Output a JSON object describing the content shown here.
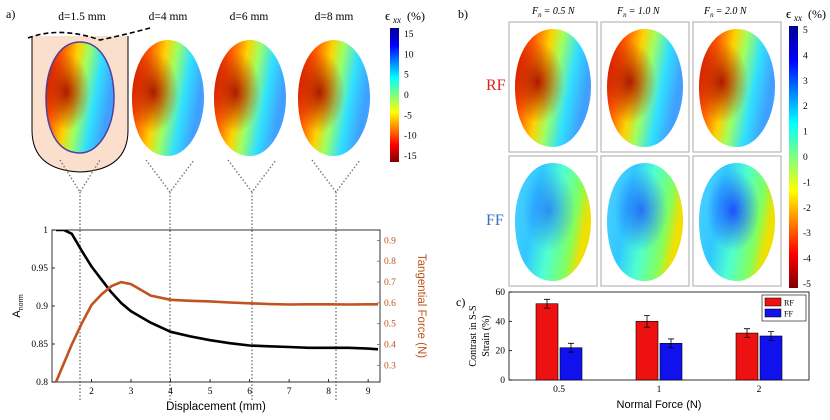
{
  "panel_a": {
    "label": "a)",
    "depth_labels": [
      "d=1.5 mm",
      "d=4 mm",
      "d=6 mm",
      "d=8 mm"
    ],
    "colorbar": {
      "title": "ϵ",
      "subscript": "xx",
      "unit": "(%)",
      "ticks": [
        "15",
        "10",
        "5",
        "0",
        "-5",
        "-10",
        "-15"
      ]
    }
  },
  "panel_b": {
    "label": "b)",
    "force_labels": [
      "F",
      "F",
      "F"
    ],
    "force_subscripts": [
      "n",
      "n",
      "n"
    ],
    "force_values": [
      "= 0.5 N",
      "= 1.0 N",
      "= 2.0 N"
    ],
    "row_labels": [
      "RF",
      "FF"
    ],
    "row_colors": [
      "#e02020",
      "#3a6fbf"
    ],
    "colorbar": {
      "title": "ϵ",
      "subscript": "xx",
      "unit": "(%)",
      "ticks": [
        "5",
        "4",
        "3",
        "2",
        "1",
        "0",
        "-1",
        "-2",
        "-3",
        "-4",
        "-5"
      ]
    }
  },
  "panel_c_label": "c)",
  "chart_data": [
    {
      "type": "line",
      "x": [
        1.1,
        1.3,
        1.5,
        1.75,
        2.0,
        2.25,
        2.5,
        2.75,
        3.0,
        3.5,
        4.0,
        4.5,
        5.0,
        5.5,
        6.0,
        6.5,
        7.0,
        7.5,
        8.0,
        8.5,
        9.0,
        9.25
      ],
      "series": [
        {
          "name": "A_norm",
          "axis": "left",
          "color": "#000000",
          "values": [
            1.0,
            1.0,
            0.995,
            0.973,
            0.952,
            0.935,
            0.918,
            0.904,
            0.893,
            0.878,
            0.866,
            0.86,
            0.855,
            0.851,
            0.848,
            0.847,
            0.846,
            0.845,
            0.845,
            0.845,
            0.844,
            0.843
          ]
        },
        {
          "name": "Tangential Force (N)",
          "axis": "right",
          "color": "#c0531f",
          "values": [
            0.22,
            0.31,
            0.4,
            0.5,
            0.59,
            0.64,
            0.68,
            0.7,
            0.69,
            0.635,
            0.615,
            0.61,
            0.607,
            0.602,
            0.598,
            0.594,
            0.592,
            0.593,
            0.593,
            0.592,
            0.593,
            0.593
          ]
        }
      ],
      "xlabel": "Displacement (mm)",
      "ylabel": "A",
      "ylabel_subscript": "norm",
      "ylabel_right": "Tangential Force (N)",
      "xlim": [
        1.0,
        9.3
      ],
      "ylim": [
        0.8,
        1.0
      ],
      "ylim_right": [
        0.22,
        0.95
      ],
      "xticks": [
        "2",
        "3",
        "4",
        "5",
        "6",
        "7",
        "8",
        "9"
      ],
      "yticks": [
        "0.8",
        "0.85",
        "0.9",
        "0.95",
        "1"
      ],
      "yticks_right": [
        "0.3",
        "0.4",
        "0.5",
        "0.6",
        "0.7",
        "0.8",
        "0.9"
      ],
      "marker_x": [
        1.75,
        4.0,
        6.0,
        8.0
      ]
    },
    {
      "type": "bar",
      "categories": [
        "0.5",
        "1",
        "2"
      ],
      "series": [
        {
          "name": "RF",
          "color": "#ee1111",
          "values": [
            52,
            40,
            32
          ],
          "errors": [
            3,
            4,
            3
          ]
        },
        {
          "name": "FF",
          "color": "#1111ee",
          "values": [
            22,
            25,
            30
          ],
          "errors": [
            3,
            3,
            3
          ]
        }
      ],
      "xlabel": "Normal Force (N)",
      "ylabel_lines": [
        "Contrast in S-S",
        "Strain (%)"
      ],
      "ylim": [
        0,
        60
      ],
      "yticks": [
        "0",
        "20",
        "40",
        "60"
      ],
      "legend": "top-right"
    }
  ]
}
